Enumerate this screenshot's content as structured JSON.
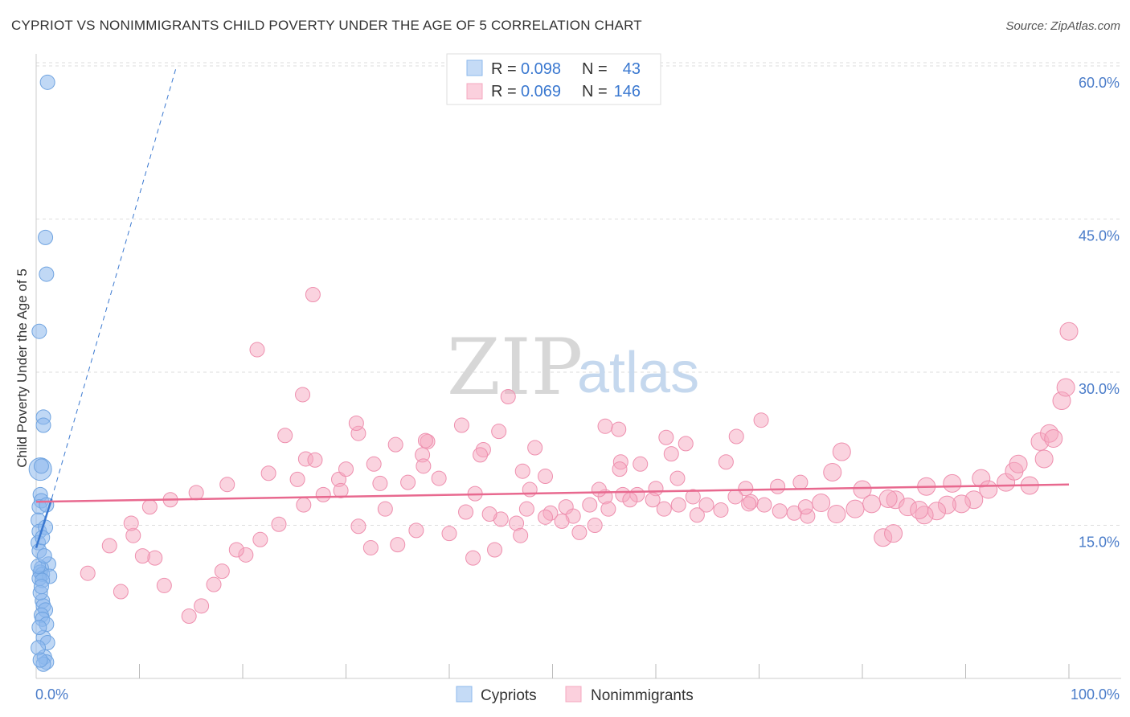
{
  "title": "CYPRIOT VS NONIMMIGRANTS CHILD POVERTY UNDER THE AGE OF 5 CORRELATION CHART",
  "source": "Source: ZipAtlas.com",
  "watermark": {
    "zip": "ZIP",
    "atlas": "atlas"
  },
  "colors": {
    "blue": "#8db8ec",
    "blue_line": "#3a78d0",
    "pink": "#f5a8c0",
    "pink_line": "#e8698f",
    "grid": "#dddddd"
  },
  "legend": {
    "rows": [
      {
        "r_label": "R =",
        "r_value": "0.098",
        "n_label": "N =",
        "n_value": "43"
      },
      {
        "r_label": "R =",
        "r_value": "0.069",
        "n_label": "N =",
        "n_value": "146"
      }
    ]
  },
  "chart_data": {
    "type": "scatter",
    "title": "CYPRIOT VS NONIMMIGRANTS CHILD POVERTY UNDER THE AGE OF 5 CORRELATION CHART",
    "xlabel": "",
    "ylabel": "Child Poverty Under the Age of 5",
    "xlim": [
      0,
      100
    ],
    "ylim": [
      0,
      63
    ],
    "x_ticks": [
      "0.0%",
      "100.0%"
    ],
    "y_ticks": [
      {
        "value": 15,
        "label": "15.0%"
      },
      {
        "value": 30,
        "label": "30.0%"
      },
      {
        "value": 45,
        "label": "45.0%"
      },
      {
        "value": 60,
        "label": "60.0%"
      }
    ],
    "legend_position": "top-center",
    "series": [
      {
        "name": "Cypriots",
        "color": "#8db8ec",
        "trend": {
          "x0": 0.0,
          "y0": 12.8,
          "x1": 1.5,
          "y1": 17.6,
          "dashed_x1": 13.6,
          "dashed_y1": 60.0
        },
        "points": [
          [
            1.1,
            58.4
          ],
          [
            0.9,
            43.2
          ],
          [
            1.0,
            39.6
          ],
          [
            0.3,
            34.0
          ],
          [
            0.7,
            25.6
          ],
          [
            0.7,
            24.8
          ],
          [
            0.4,
            20.5
          ],
          [
            0.5,
            20.8
          ],
          [
            0.4,
            18.0
          ],
          [
            0.5,
            17.4
          ],
          [
            0.3,
            16.8
          ],
          [
            0.2,
            15.5
          ],
          [
            0.3,
            14.4
          ],
          [
            0.2,
            13.3
          ],
          [
            0.3,
            12.5
          ],
          [
            1.2,
            11.2
          ],
          [
            0.5,
            10.8
          ],
          [
            0.4,
            10.4
          ],
          [
            0.6,
            10.2
          ],
          [
            1.3,
            10.0
          ],
          [
            0.3,
            9.8
          ],
          [
            0.6,
            9.6
          ],
          [
            0.6,
            7.6
          ],
          [
            0.7,
            7.1
          ],
          [
            0.9,
            6.7
          ],
          [
            0.5,
            6.2
          ],
          [
            0.6,
            5.8
          ],
          [
            1.0,
            5.3
          ],
          [
            0.7,
            4.0
          ],
          [
            1.1,
            3.5
          ],
          [
            0.8,
            2.1
          ],
          [
            1.0,
            1.6
          ],
          [
            0.7,
            1.4
          ],
          [
            0.2,
            11.0
          ],
          [
            0.4,
            8.4
          ],
          [
            0.8,
            12.0
          ],
          [
            0.3,
            5.0
          ],
          [
            0.9,
            14.8
          ],
          [
            0.5,
            9.0
          ],
          [
            0.2,
            3.0
          ],
          [
            1.0,
            17.0
          ],
          [
            0.6,
            13.8
          ],
          [
            0.4,
            1.8
          ]
        ]
      },
      {
        "name": "Nonimmigrants",
        "color": "#f5a8c0",
        "trend": {
          "x0": 0.0,
          "y0": 17.3,
          "x1": 100.0,
          "y1": 19.0
        },
        "points": [
          [
            26.8,
            37.6
          ],
          [
            21.4,
            32.2
          ],
          [
            25.8,
            27.8
          ],
          [
            45.7,
            27.6
          ],
          [
            31.2,
            24.0
          ],
          [
            41.2,
            24.8
          ],
          [
            44.8,
            24.2
          ],
          [
            56.4,
            24.4
          ],
          [
            67.8,
            23.7
          ],
          [
            70.2,
            25.3
          ],
          [
            78.0,
            22.2
          ],
          [
            37.9,
            23.2
          ],
          [
            37.4,
            21.9
          ],
          [
            26.1,
            21.5
          ],
          [
            24.1,
            23.8
          ],
          [
            43.3,
            22.4
          ],
          [
            47.1,
            20.3
          ],
          [
            49.3,
            19.8
          ],
          [
            56.6,
            21.2
          ],
          [
            47.8,
            18.5
          ],
          [
            36.0,
            19.2
          ],
          [
            33.3,
            19.1
          ],
          [
            29.3,
            19.5
          ],
          [
            25.3,
            19.5
          ],
          [
            31.0,
            25.0
          ],
          [
            48.3,
            22.6
          ],
          [
            37.7,
            23.3
          ],
          [
            55.1,
            24.7
          ],
          [
            62.9,
            23.0
          ],
          [
            66.8,
            21.2
          ],
          [
            62.1,
            19.6
          ],
          [
            55.1,
            17.8
          ],
          [
            54.5,
            18.5
          ],
          [
            53.6,
            17.0
          ],
          [
            51.3,
            16.8
          ],
          [
            47.5,
            16.6
          ],
          [
            49.8,
            16.2
          ],
          [
            52.0,
            15.9
          ],
          [
            60.0,
            18.6
          ],
          [
            68.7,
            18.6
          ],
          [
            71.8,
            18.8
          ],
          [
            74.0,
            19.2
          ],
          [
            77.1,
            20.2
          ],
          [
            80.0,
            18.5
          ],
          [
            83.2,
            17.5
          ],
          [
            86.2,
            18.8
          ],
          [
            88.7,
            19.1
          ],
          [
            91.5,
            19.6
          ],
          [
            93.9,
            19.2
          ],
          [
            96.2,
            18.9
          ],
          [
            97.6,
            21.5
          ],
          [
            94.7,
            20.3
          ],
          [
            95.1,
            21.0
          ],
          [
            97.2,
            23.2
          ],
          [
            98.1,
            24.0
          ],
          [
            99.3,
            27.2
          ],
          [
            100.0,
            34.0
          ],
          [
            99.7,
            28.5
          ],
          [
            98.5,
            23.5
          ],
          [
            92.2,
            18.5
          ],
          [
            90.8,
            17.5
          ],
          [
            89.6,
            17.1
          ],
          [
            88.2,
            17.0
          ],
          [
            87.2,
            16.4
          ],
          [
            86.0,
            16.0
          ],
          [
            84.4,
            16.8
          ],
          [
            82.5,
            17.6
          ],
          [
            80.9,
            17.1
          ],
          [
            79.3,
            16.6
          ],
          [
            77.5,
            16.1
          ],
          [
            76.0,
            17.2
          ],
          [
            74.7,
            15.9
          ],
          [
            73.4,
            16.2
          ],
          [
            72.0,
            16.4
          ],
          [
            70.5,
            17.0
          ],
          [
            69.2,
            17.3
          ],
          [
            67.7,
            17.8
          ],
          [
            66.3,
            16.5
          ],
          [
            64.9,
            17.0
          ],
          [
            63.6,
            17.8
          ],
          [
            62.2,
            17.0
          ],
          [
            60.8,
            16.6
          ],
          [
            59.7,
            17.5
          ],
          [
            58.2,
            18.0
          ],
          [
            56.8,
            18.0
          ],
          [
            55.4,
            16.6
          ],
          [
            54.1,
            15.0
          ],
          [
            52.6,
            14.3
          ],
          [
            50.9,
            15.4
          ],
          [
            49.3,
            15.8
          ],
          [
            46.5,
            15.2
          ],
          [
            45.0,
            15.6
          ],
          [
            43.9,
            16.1
          ],
          [
            41.6,
            16.3
          ],
          [
            42.3,
            11.8
          ],
          [
            44.4,
            12.6
          ],
          [
            46.9,
            14.0
          ],
          [
            40.0,
            14.2
          ],
          [
            36.8,
            14.5
          ],
          [
            35.0,
            13.1
          ],
          [
            33.8,
            16.6
          ],
          [
            32.4,
            12.8
          ],
          [
            31.2,
            14.9
          ],
          [
            29.5,
            18.4
          ],
          [
            27.8,
            18.0
          ],
          [
            25.9,
            17.0
          ],
          [
            23.5,
            15.1
          ],
          [
            21.7,
            13.6
          ],
          [
            20.3,
            12.1
          ],
          [
            19.4,
            12.6
          ],
          [
            18.0,
            10.5
          ],
          [
            17.2,
            9.2
          ],
          [
            16.0,
            7.1
          ],
          [
            14.8,
            6.1
          ],
          [
            12.4,
            9.1
          ],
          [
            11.5,
            11.8
          ],
          [
            10.3,
            12.0
          ],
          [
            9.4,
            14.0
          ],
          [
            9.2,
            15.2
          ],
          [
            5.0,
            10.3
          ],
          [
            7.1,
            13.0
          ],
          [
            8.2,
            8.5
          ],
          [
            11.0,
            16.8
          ],
          [
            13.0,
            17.5
          ],
          [
            15.5,
            18.2
          ],
          [
            18.5,
            19.0
          ],
          [
            22.5,
            20.1
          ],
          [
            27.0,
            21.4
          ],
          [
            30.0,
            20.5
          ],
          [
            32.7,
            21.0
          ],
          [
            34.8,
            22.9
          ],
          [
            39.0,
            19.6
          ],
          [
            56.5,
            20.5
          ],
          [
            42.5,
            18.1
          ],
          [
            58.5,
            21.0
          ],
          [
            61.0,
            23.6
          ],
          [
            61.5,
            22.0
          ],
          [
            69.0,
            17.1
          ],
          [
            82.0,
            13.8
          ],
          [
            83.0,
            14.2
          ],
          [
            85.5,
            16.5
          ],
          [
            74.5,
            16.8
          ],
          [
            64.0,
            16.0
          ],
          [
            57.5,
            17.5
          ],
          [
            37.5,
            20.8
          ],
          [
            43.0,
            21.9
          ]
        ]
      }
    ]
  },
  "bottom_legend": [
    {
      "label": "Cypriots"
    },
    {
      "label": "Nonimmigrants"
    }
  ]
}
